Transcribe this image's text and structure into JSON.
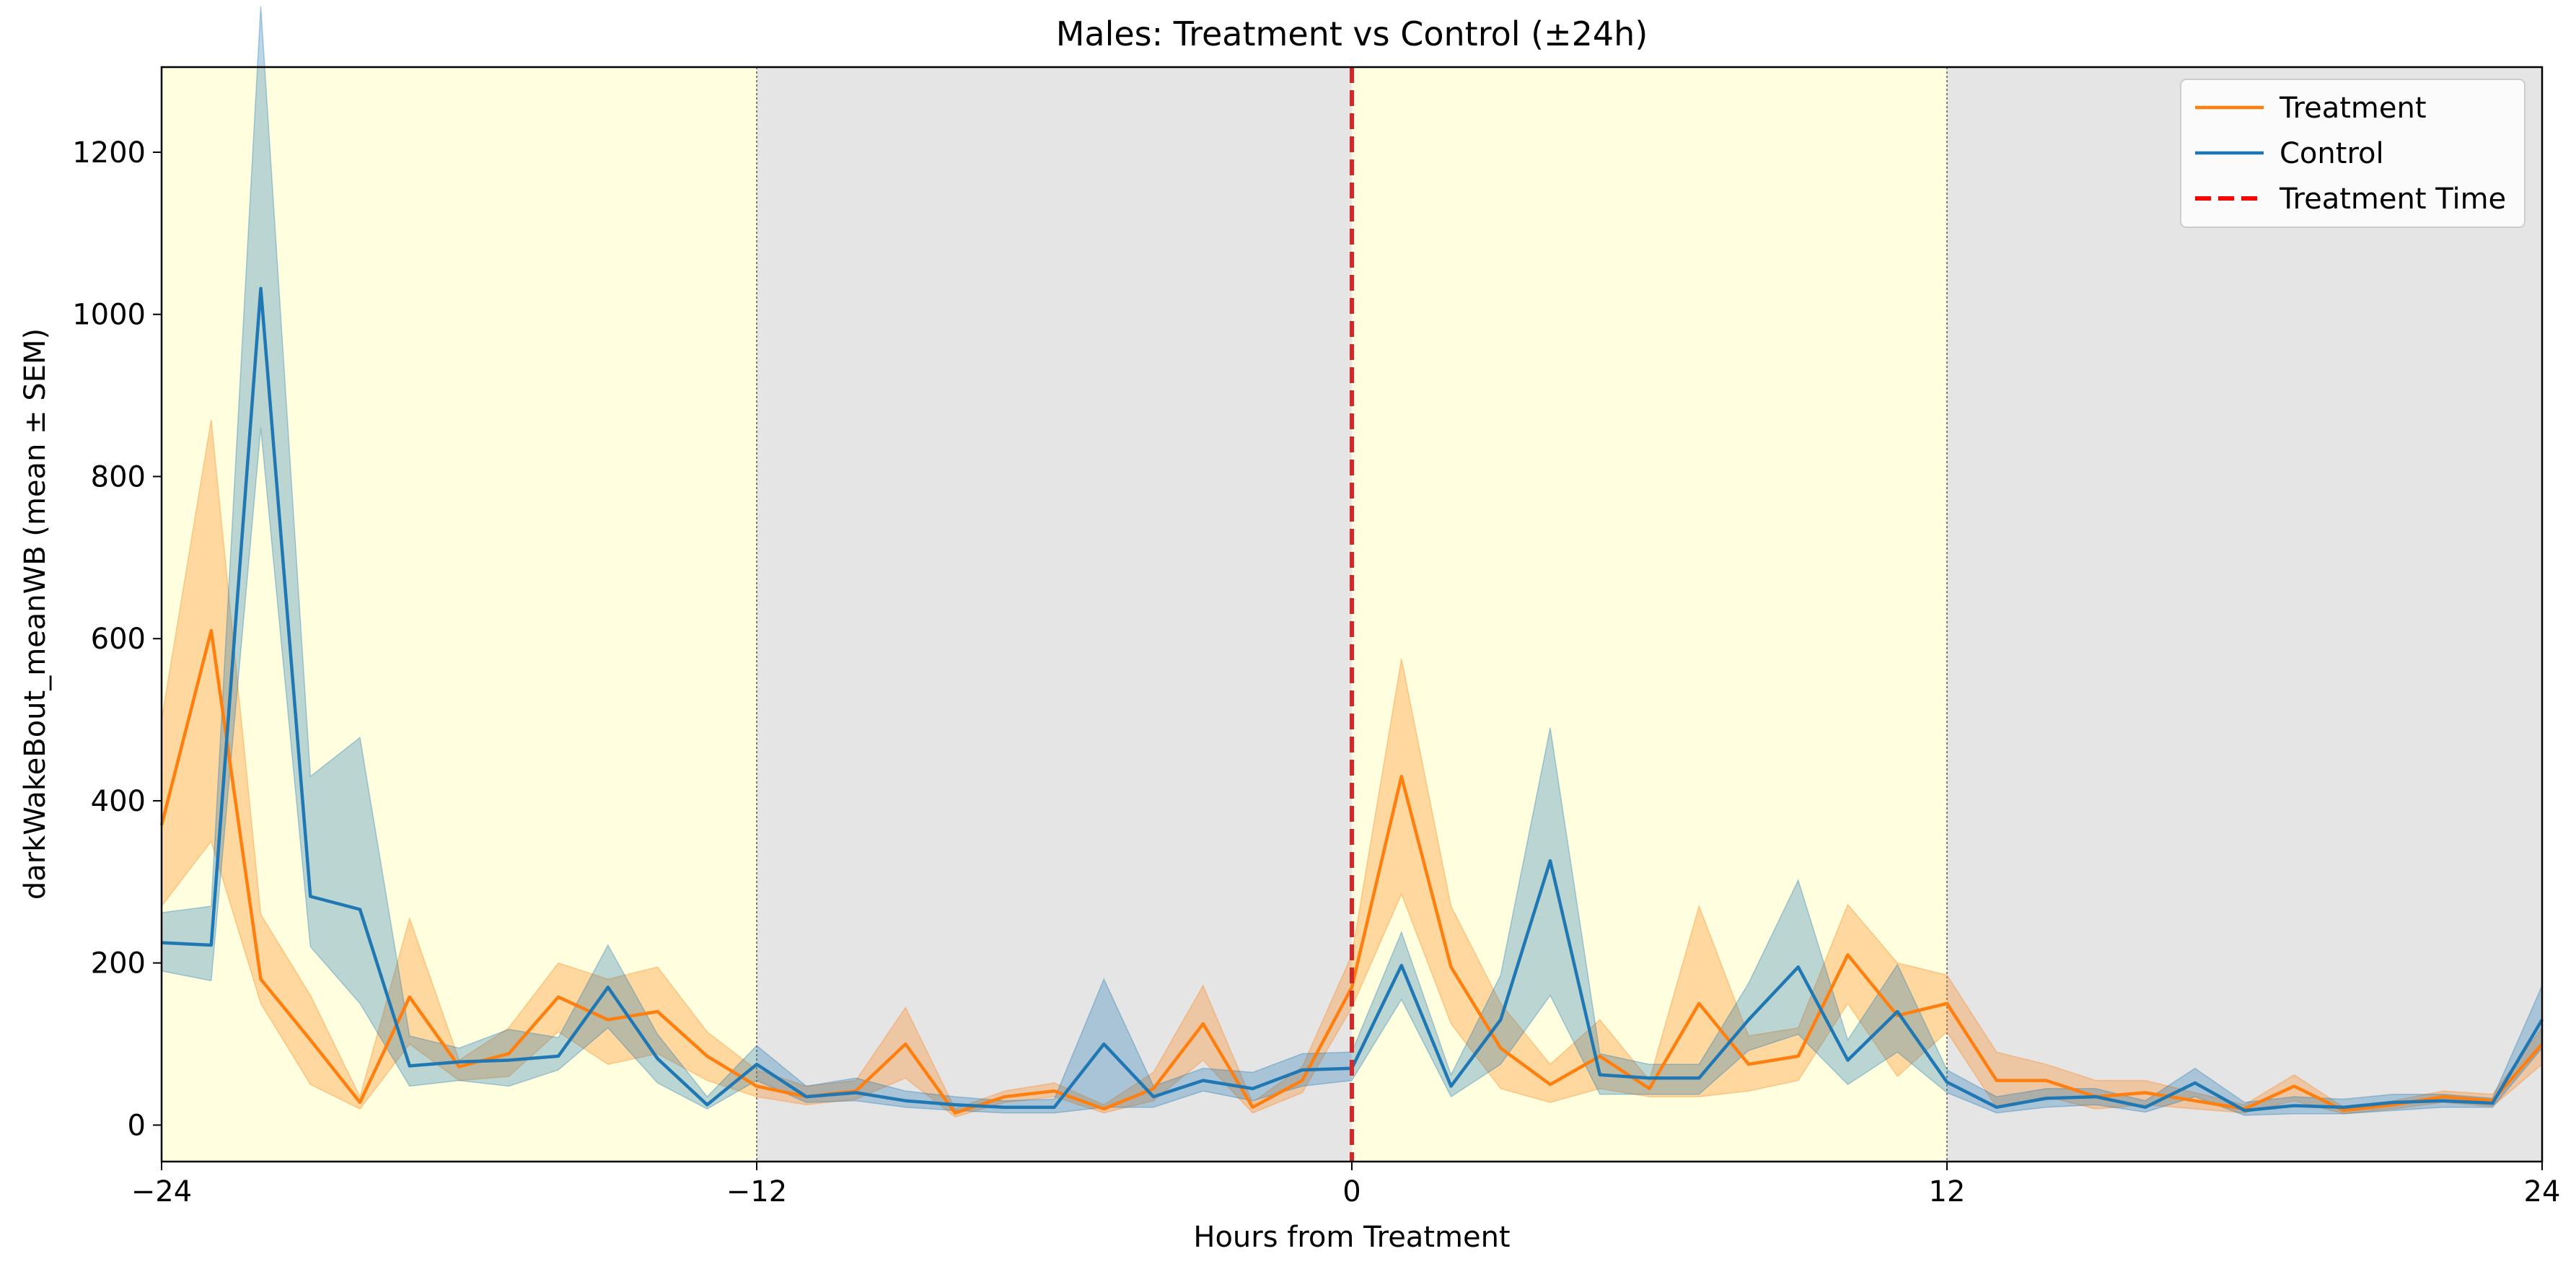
{
  "chart_data": {
    "type": "line",
    "title": "Males: Treatment vs Control (±24h)",
    "xlabel": "Hours from Treatment",
    "ylabel": "darkWakeBout_meanWB (mean ± SEM)",
    "xlim": [
      -24,
      24
    ],
    "ylim": [
      -45,
      1305
    ],
    "x_ticks": [
      -24,
      -12,
      0,
      12,
      24
    ],
    "x_tick_labels": [
      "−24",
      "−12",
      "0",
      "12",
      "24"
    ],
    "y_ticks": [
      0,
      200,
      400,
      600,
      800,
      1000,
      1200
    ],
    "y_tick_labels": [
      "0",
      "200",
      "400",
      "600",
      "800",
      "1000",
      "1200"
    ],
    "grid": false,
    "legend_position": "upper-right",
    "x": [
      -24,
      -23,
      -22,
      -21,
      -20,
      -19,
      -18,
      -17,
      -16,
      -15,
      -14,
      -13,
      -12,
      -11,
      -10,
      -9,
      -8,
      -7,
      -6,
      -5,
      -4,
      -3,
      -2,
      -1,
      0,
      1,
      2,
      3,
      4,
      5,
      6,
      7,
      8,
      9,
      10,
      11,
      12,
      13,
      14,
      15,
      16,
      17,
      18,
      19,
      20,
      21,
      22,
      23,
      24
    ],
    "series": [
      {
        "name": "Treatment",
        "color": "#ff7f0e",
        "values": [
          370,
          610,
          180,
          105,
          28,
          158,
          72,
          88,
          158,
          130,
          140,
          85,
          48,
          35,
          42,
          100,
          15,
          35,
          42,
          20,
          45,
          125,
          22,
          55,
          170,
          430,
          195,
          95,
          50,
          85,
          45,
          150,
          75,
          85,
          210,
          135,
          150,
          55,
          55,
          35,
          40,
          30,
          20,
          48,
          18,
          25,
          35,
          30,
          100
        ],
        "upper": [
          500,
          870,
          260,
          160,
          35,
          255,
          80,
          120,
          200,
          180,
          195,
          115,
          68,
          48,
          55,
          145,
          20,
          42,
          52,
          25,
          65,
          172,
          28,
          72,
          210,
          575,
          270,
          150,
          75,
          130,
          55,
          270,
          110,
          120,
          272,
          200,
          185,
          90,
          75,
          55,
          55,
          40,
          25,
          62,
          22,
          30,
          42,
          38,
          120
        ],
        "lower": [
          270,
          350,
          150,
          50,
          20,
          100,
          55,
          60,
          115,
          75,
          88,
          55,
          35,
          25,
          32,
          58,
          10,
          28,
          35,
          15,
          30,
          80,
          15,
          40,
          145,
          285,
          125,
          45,
          28,
          45,
          35,
          35,
          42,
          55,
          150,
          60,
          115,
          22,
          35,
          20,
          25,
          20,
          15,
          30,
          14,
          20,
          28,
          23,
          75
        ]
      },
      {
        "name": "Control",
        "color": "#1f77b4",
        "values": [
          225,
          222,
          1032,
          282,
          266,
          73,
          78,
          80,
          85,
          170,
          82,
          25,
          75,
          35,
          40,
          30,
          25,
          22,
          22,
          100,
          35,
          55,
          45,
          68,
          70,
          197,
          48,
          130,
          326,
          62,
          58,
          58,
          130,
          195,
          80,
          140,
          53,
          22,
          33,
          35,
          22,
          52,
          18,
          24,
          22,
          28,
          30,
          27,
          130
        ],
        "upper": [
          262,
          270,
          1380,
          430,
          478,
          110,
          95,
          118,
          108,
          222,
          112,
          35,
          98,
          48,
          58,
          42,
          35,
          30,
          32,
          180,
          48,
          70,
          65,
          88,
          90,
          238,
          62,
          185,
          490,
          88,
          75,
          75,
          175,
          302,
          105,
          198,
          68,
          35,
          45,
          45,
          30,
          70,
          28,
          35,
          32,
          38,
          38,
          33,
          172
        ],
        "lower": [
          190,
          178,
          860,
          220,
          150,
          48,
          55,
          48,
          68,
          120,
          52,
          20,
          55,
          28,
          30,
          22,
          18,
          15,
          15,
          22,
          22,
          42,
          30,
          48,
          55,
          155,
          35,
          75,
          160,
          38,
          38,
          38,
          92,
          112,
          50,
          90,
          40,
          15,
          22,
          25,
          16,
          35,
          12,
          14,
          14,
          18,
          22,
          22,
          95
        ]
      }
    ],
    "treatment_time": 0,
    "treatment_time_color": "#d62728",
    "treatment_time_label": "Treatment Time",
    "background_regions": [
      {
        "x0": -24,
        "x1": -12,
        "color": "#ffffe0"
      },
      {
        "x0": -12,
        "x1": 0,
        "color": "#e5e5e5"
      },
      {
        "x0": 0,
        "x1": 12,
        "color": "#ffffe0"
      },
      {
        "x0": 12,
        "x1": 24,
        "color": "#e5e5e5"
      }
    ],
    "boundary_lines": [
      -12,
      12
    ]
  }
}
